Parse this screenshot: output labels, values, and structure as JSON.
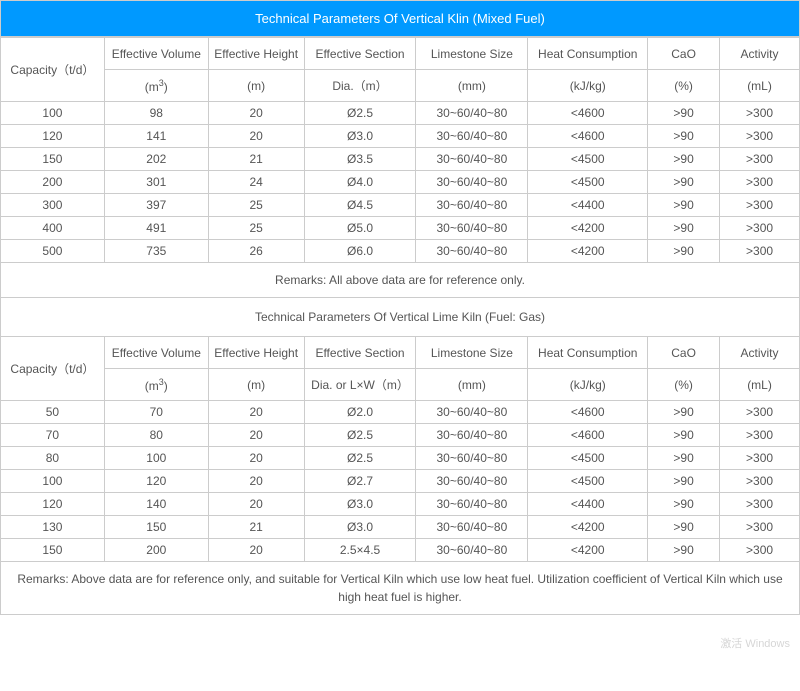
{
  "title": "Technical Parameters Of Vertical Klin (Mixed Fuel)",
  "colors": {
    "header_bg": "#0099ff",
    "header_text": "#ffffff",
    "border": "#cccccc",
    "text": "#555555"
  },
  "headers": {
    "capacity": "Capacity（t/d）",
    "vol_top": "Effective Volume",
    "vol_unit": "(m³)",
    "height_top": "Effective Height",
    "height_unit": "(m)",
    "section_top": "Effective Section",
    "section_unit1": "Dia.（m）",
    "section_unit2": "Dia. or L×W（m）",
    "limestone_top": "Limestone Size",
    "limestone_unit": "(mm)",
    "heat_top": "Heat Consumption",
    "heat_unit": "(kJ/kg)",
    "cao_top": "CaO",
    "cao_unit": "(%)",
    "activity_top": "Activity",
    "activity_unit": "(mL)"
  },
  "table1_rows": [
    [
      "100",
      "98",
      "20",
      "Ø2.5",
      "30~60/40~80",
      "<4600",
      ">90",
      ">300"
    ],
    [
      "120",
      "141",
      "20",
      "Ø3.0",
      "30~60/40~80",
      "<4600",
      ">90",
      ">300"
    ],
    [
      "150",
      "202",
      "21",
      "Ø3.5",
      "30~60/40~80",
      "<4500",
      ">90",
      ">300"
    ],
    [
      "200",
      "301",
      "24",
      "Ø4.0",
      "30~60/40~80",
      "<4500",
      ">90",
      ">300"
    ],
    [
      "300",
      "397",
      "25",
      "Ø4.5",
      "30~60/40~80",
      "<4400",
      ">90",
      ">300"
    ],
    [
      "400",
      "491",
      "25",
      "Ø5.0",
      "30~60/40~80",
      "<4200",
      ">90",
      ">300"
    ],
    [
      "500",
      "735",
      "26",
      "Ø6.0",
      "30~60/40~80",
      "<4200",
      ">90",
      ">300"
    ]
  ],
  "remarks1": "Remarks: All above data are for reference only.",
  "subtitle": "Technical Parameters Of Vertical Lime Kiln (Fuel: Gas)",
  "table2_rows": [
    [
      "50",
      "70",
      "20",
      "Ø2.0",
      "30~60/40~80",
      "<4600",
      ">90",
      ">300"
    ],
    [
      "70",
      "80",
      "20",
      "Ø2.5",
      "30~60/40~80",
      "<4600",
      ">90",
      ">300"
    ],
    [
      "80",
      "100",
      "20",
      "Ø2.5",
      "30~60/40~80",
      "<4500",
      ">90",
      ">300"
    ],
    [
      "100",
      "120",
      "20",
      "Ø2.7",
      "30~60/40~80",
      "<4500",
      ">90",
      ">300"
    ],
    [
      "120",
      "140",
      "20",
      "Ø3.0",
      "30~60/40~80",
      "<4400",
      ">90",
      ">300"
    ],
    [
      "130",
      "150",
      "21",
      "Ø3.0",
      "30~60/40~80",
      "<4200",
      ">90",
      ">300"
    ],
    [
      "150",
      "200",
      "20",
      "2.5×4.5",
      "30~60/40~80",
      "<4200",
      ">90",
      ">300"
    ]
  ],
  "remarks2": "Remarks: Above data are for reference only, and suitable for Vertical Kiln which use low heat fuel.  Utilization coefficient of Vertical Kiln which use high heat fuel is higher.",
  "watermark": "激活 Windows"
}
